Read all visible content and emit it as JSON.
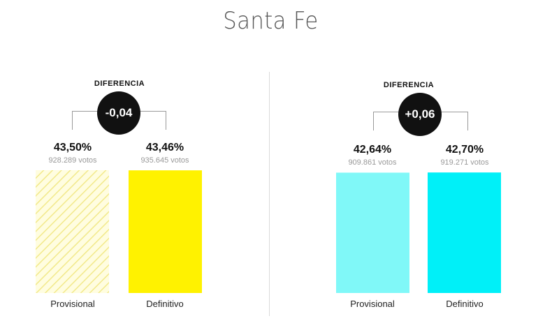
{
  "title": "Santa Fe",
  "chart_data": [
    {
      "type": "bar",
      "diff_label": "DIFERENCIA",
      "diff_value": "-0,04",
      "categories": [
        "Provisional",
        "Definitivo"
      ],
      "values": [
        43.5,
        43.46
      ],
      "value_labels": [
        "43,50%",
        "43,46%"
      ],
      "votes": [
        "928.289 votos",
        "935.645 votos"
      ],
      "colors": [
        "#fdf5a0",
        "#fff200"
      ],
      "hatched": [
        true,
        false
      ],
      "ylim": [
        0,
        43.5
      ]
    },
    {
      "type": "bar",
      "diff_label": "DIFERENCIA",
      "diff_value": "+0,06",
      "categories": [
        "Provisional",
        "Definitivo"
      ],
      "values": [
        42.64,
        42.7
      ],
      "value_labels": [
        "42,64%",
        "42,70%"
      ],
      "votes": [
        "909.861 votos",
        "919.271 votos"
      ],
      "colors": [
        "#80f8f8",
        "#00f0f8"
      ],
      "hatched": [
        false,
        false
      ],
      "ylim": [
        0,
        43.5
      ]
    }
  ]
}
